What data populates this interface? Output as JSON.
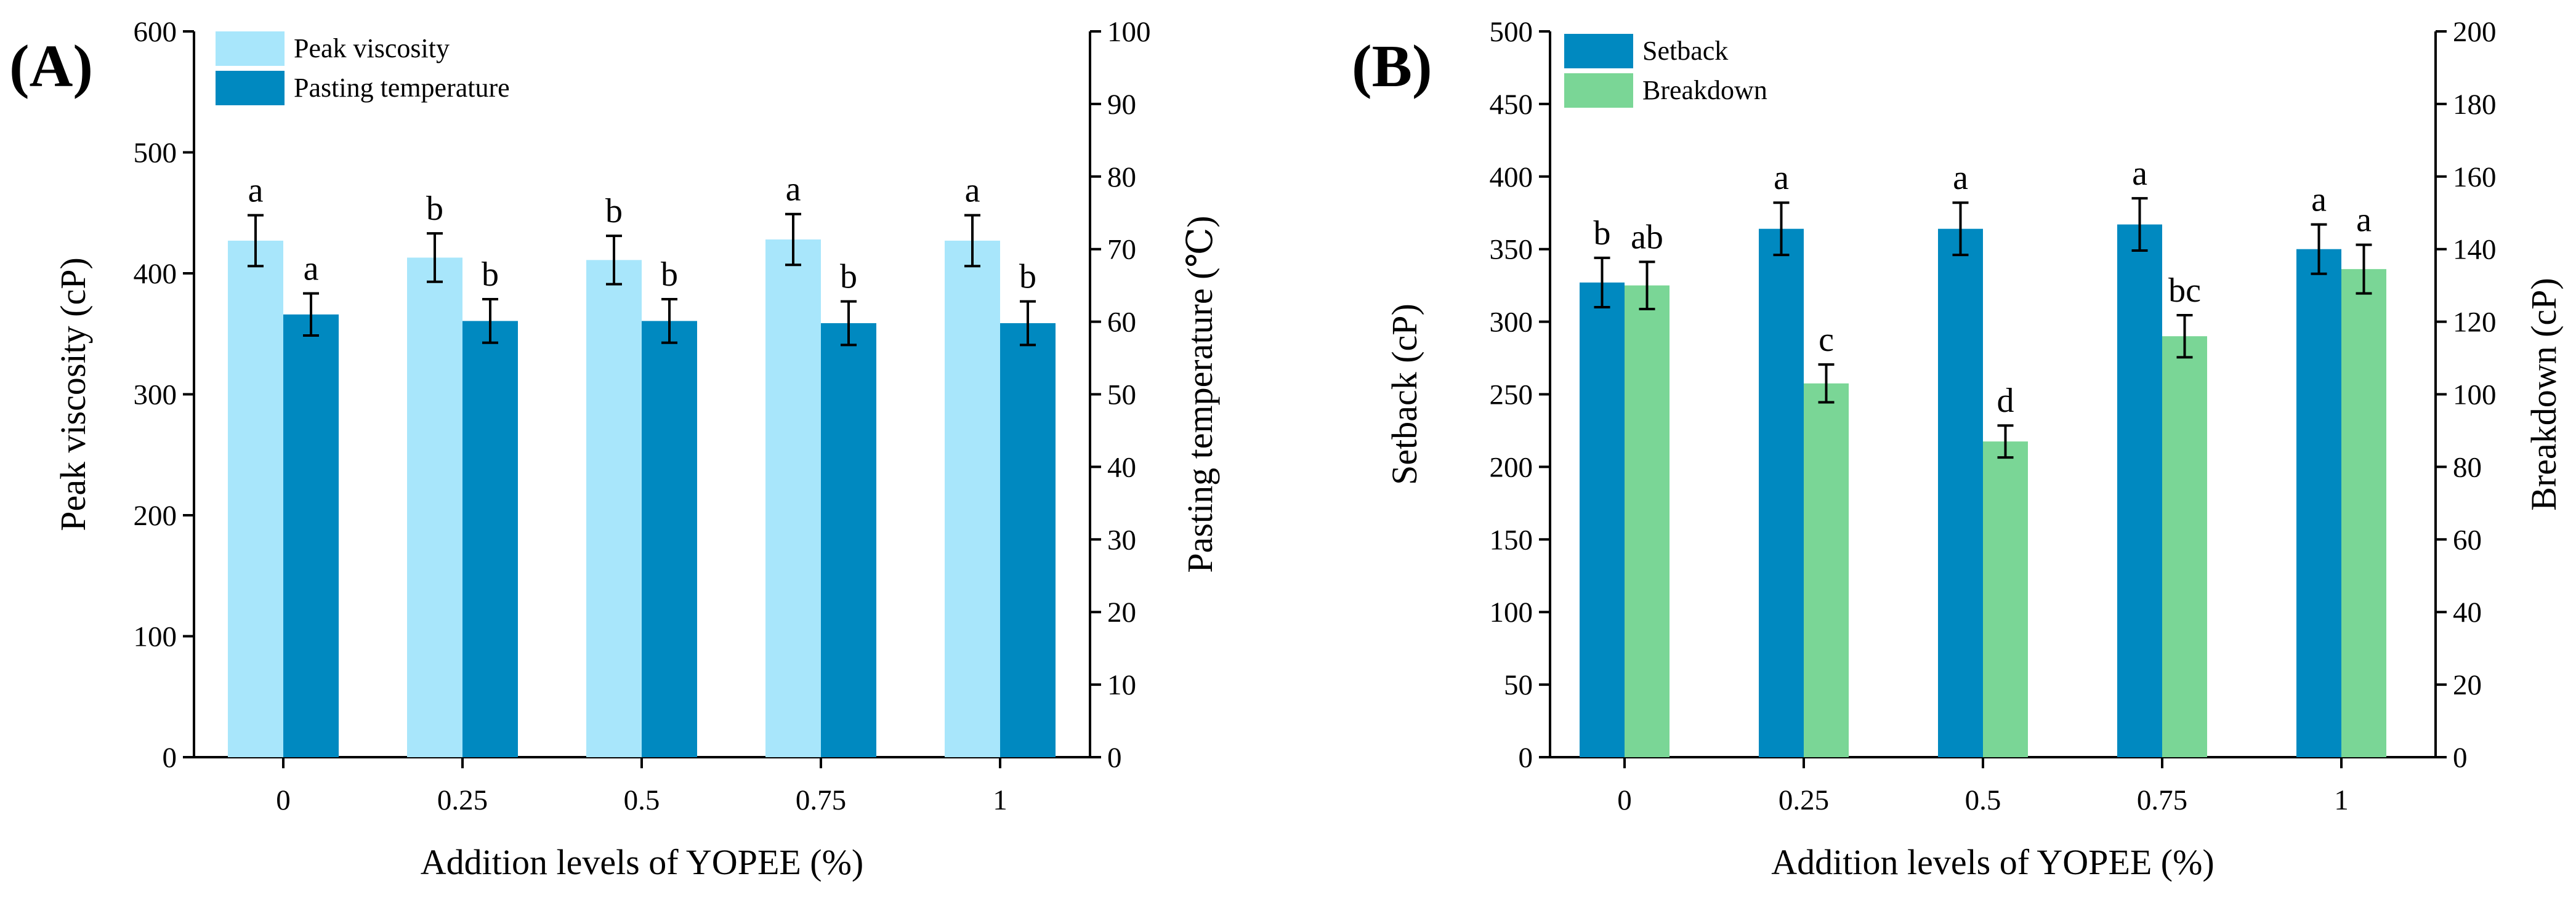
{
  "chart_data": [
    {
      "panel_label": "(A)",
      "type": "bar",
      "categories": [
        "0",
        "0.25",
        "0.5",
        "0.75",
        "1"
      ],
      "xlabel": "Addition levels of YOPEE (%)",
      "ylabel_left": "Peak viscosity (cP)",
      "ylabel_right": "Pasting temperature (℃)",
      "ylim_left": [
        0,
        600
      ],
      "yticks_left": [
        "0",
        "100",
        "200",
        "300",
        "400",
        "500",
        "600"
      ],
      "ylim_right": [
        0,
        100
      ],
      "yticks_right": [
        "0",
        "10",
        "20",
        "30",
        "40",
        "50",
        "60",
        "70",
        "80",
        "90",
        "100"
      ],
      "grid": false,
      "legend_position": "top-left",
      "series": [
        {
          "name": "Peak viscosity",
          "axis": "left",
          "color": "#a8e6fb",
          "values": [
            427,
            413,
            411,
            428,
            427
          ],
          "errors": [
            21,
            20,
            20,
            21,
            21
          ],
          "labels": [
            "a",
            "b",
            "b",
            "a",
            "a"
          ]
        },
        {
          "name": "Pasting temperature",
          "axis": "right",
          "color": "#0089c0",
          "values": [
            61.0,
            60.1,
            60.1,
            59.8,
            59.8
          ],
          "errors": [
            2.9,
            3.0,
            3.0,
            3.0,
            3.0
          ],
          "labels": [
            "a",
            "b",
            "b",
            "b",
            "b"
          ]
        }
      ]
    },
    {
      "panel_label": "(B)",
      "type": "bar",
      "categories": [
        "0",
        "0.25",
        "0.5",
        "0.75",
        "1"
      ],
      "xlabel": "Addition levels of YOPEE (%)",
      "ylabel_left": "Setback (cP)",
      "ylabel_right": "Breakdown (cP)",
      "ylim_left": [
        0,
        500
      ],
      "yticks_left": [
        "0",
        "50",
        "100",
        "150",
        "200",
        "250",
        "300",
        "350",
        "400",
        "450",
        "500"
      ],
      "ylim_right": [
        0,
        200
      ],
      "yticks_right": [
        "0",
        "20",
        "40",
        "60",
        "80",
        "100",
        "120",
        "140",
        "160",
        "180",
        "200"
      ],
      "grid": false,
      "legend_position": "top-left",
      "series": [
        {
          "name": "Setback",
          "axis": "left",
          "color": "#0089c0",
          "values": [
            327,
            364,
            364,
            367,
            350
          ],
          "errors": [
            17,
            18,
            18,
            18,
            17
          ],
          "labels": [
            "b",
            "a",
            "a",
            "a",
            "a"
          ]
        },
        {
          "name": "Breakdown",
          "axis": "right",
          "color": "#7ad696",
          "values": [
            130,
            103,
            87,
            116,
            134.5
          ],
          "errors": [
            6.5,
            5.2,
            4.4,
            5.8,
            6.7
          ],
          "labels": [
            "ab",
            "c",
            "d",
            "bc",
            "a"
          ]
        }
      ]
    }
  ]
}
